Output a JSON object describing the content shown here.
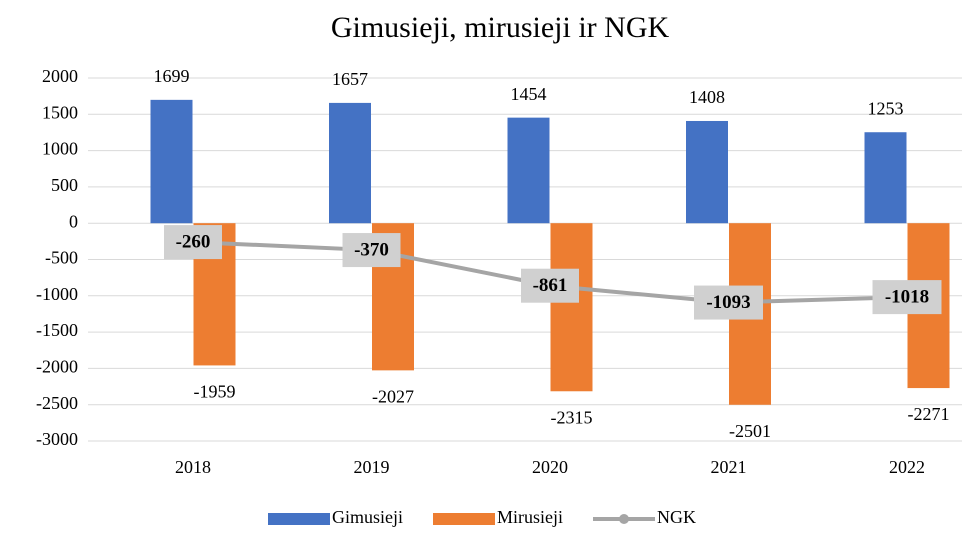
{
  "chart_data": {
    "type": "bar",
    "title": "Gimusieji, mirusieji ir NGK",
    "categories": [
      "2018",
      "2019",
      "2020",
      "2021",
      "2022"
    ],
    "series": [
      {
        "name": "Gimusieji",
        "color": "#4472c4",
        "values": [
          1699,
          1657,
          1454,
          1408,
          1253
        ]
      },
      {
        "name": "Mirusieji",
        "color": "#ed7d31",
        "values": [
          -1959,
          -2027,
          -2315,
          -2501,
          -2271
        ]
      },
      {
        "name": "NGK",
        "color": "#a5a5a5",
        "type": "line",
        "values": [
          -260,
          -370,
          -861,
          -1093,
          -1018
        ]
      }
    ],
    "ylim": [
      -3000,
      2000
    ],
    "yticks": [
      -3000,
      -2500,
      -2000,
      -1500,
      -1000,
      -500,
      0,
      500,
      1000,
      1500,
      2000
    ],
    "grid": true,
    "legend": "bottom"
  }
}
